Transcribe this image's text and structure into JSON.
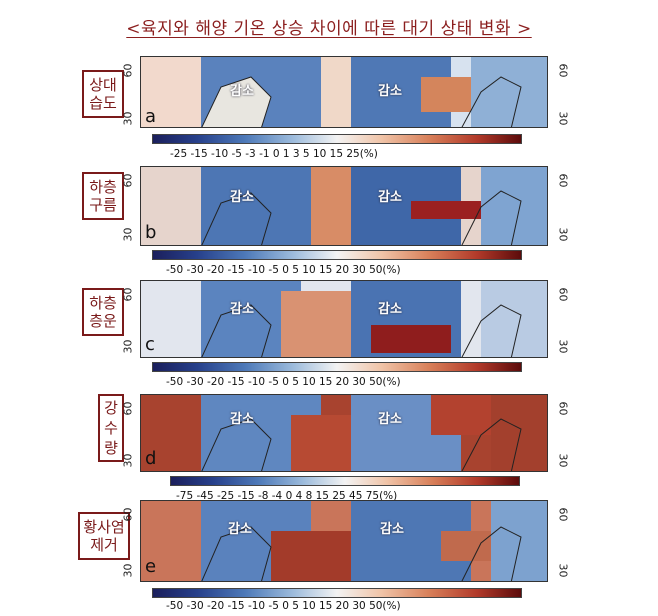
{
  "title": "<육지와 해양 기온 상승 차이에 따른 대기 상태 변화 >",
  "decrease_label": "감소",
  "lat_labels": {
    "top": "60",
    "bottom": "30"
  },
  "panels": [
    {
      "id": "a",
      "label_lines": [
        "상대",
        "습도"
      ],
      "ticks": "-25 -15 -10 -5 -3 -1 0 1 3 5 10 15 25(%)"
    },
    {
      "id": "b",
      "label_lines": [
        "하층",
        "구름"
      ],
      "ticks": "-50 -30 -20 -15 -10 -5 0 5 10 15 20 30 50(%)"
    },
    {
      "id": "c",
      "label_lines": [
        "하층",
        "층운"
      ],
      "ticks": "-50 -30 -20 -15 -10 -5 0 5 10 15 20 30 50(%)"
    },
    {
      "id": "d",
      "label_lines": [
        "강",
        "수",
        "량"
      ],
      "ticks": "-75 -45 -25 -15 -8 -4 0 4 8 15 25 45 75(%)"
    },
    {
      "id": "e",
      "label_lines": [
        "황사염",
        "제거"
      ],
      "ticks": "-50 -30 -20 -15 -10 -5 0 5 10 15 20 30 50(%)"
    }
  ],
  "colors": {
    "label_border": "#7a1a1a",
    "title": "#8b1e1e",
    "blue": "#3f67a8",
    "red": "#b23a2a"
  }
}
